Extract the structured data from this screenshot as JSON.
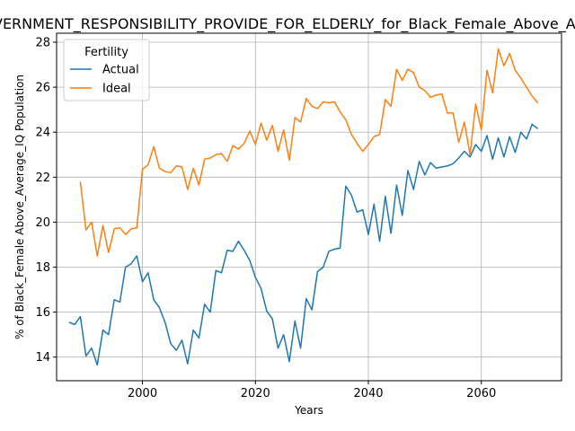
{
  "chart_data": {
    "type": "line",
    "title": "GOVERNMENT_RESPONSIBILITY_PROVIDE_FOR_ELDERLY_for_Black_Female_Above_Average_IQ",
    "xlabel": "Years",
    "ylabel": "% of Black_Female Above_Average_IQ Population",
    "xlim": [
      1984.8,
      2074.2
    ],
    "ylim": [
      12.95,
      28.4
    ],
    "xticks": [
      2000,
      2020,
      2040,
      2060
    ],
    "yticks": [
      14,
      16,
      18,
      20,
      22,
      24,
      26,
      28
    ],
    "grid": true,
    "legend": {
      "title": "Fertility",
      "placement": "top-left"
    },
    "x": [
      1987,
      1988,
      1989,
      1990,
      1991,
      1992,
      1993,
      1994,
      1995,
      1996,
      1997,
      1998,
      1999,
      2000,
      2001,
      2002,
      2003,
      2004,
      2005,
      2006,
      2007,
      2008,
      2009,
      2010,
      2011,
      2012,
      2013,
      2014,
      2015,
      2016,
      2017,
      2018,
      2019,
      2020,
      2021,
      2022,
      2023,
      2024,
      2025,
      2026,
      2027,
      2028,
      2029,
      2030,
      2031,
      2032,
      2033,
      2034,
      2035,
      2036,
      2037,
      2038,
      2039,
      2040,
      2041,
      2042,
      2043,
      2044,
      2045,
      2046,
      2047,
      2048,
      2049,
      2050,
      2051,
      2052,
      2053,
      2054,
      2055,
      2056,
      2057,
      2058,
      2059,
      2060,
      2061,
      2062,
      2063,
      2064,
      2065,
      2066,
      2067,
      2068,
      2069,
      2070
    ],
    "series": [
      {
        "name": "Actual",
        "color": "#1f77b4",
        "values": [
          15.55,
          15.45,
          15.8,
          14.05,
          14.4,
          13.65,
          15.2,
          15.0,
          16.55,
          16.45,
          18.0,
          18.15,
          18.5,
          17.35,
          17.75,
          16.55,
          16.2,
          15.55,
          14.6,
          14.3,
          14.75,
          13.7,
          15.2,
          14.85,
          16.35,
          16.0,
          17.85,
          17.75,
          18.75,
          18.7,
          19.15,
          18.75,
          18.3,
          17.55,
          17.05,
          16.05,
          15.7,
          14.4,
          15.0,
          13.8,
          15.6,
          14.4,
          16.6,
          16.1,
          17.8,
          18.0,
          18.7,
          18.8,
          18.85,
          21.6,
          21.2,
          20.45,
          20.55,
          19.45,
          20.8,
          19.15,
          21.15,
          19.5,
          21.65,
          20.3,
          22.3,
          21.45,
          22.7,
          22.1,
          22.65,
          22.4,
          22.45,
          22.5,
          22.6,
          22.85,
          23.15,
          22.9,
          23.45,
          23.15,
          23.85,
          22.8,
          23.75,
          22.9,
          23.8,
          23.1,
          24.0,
          23.7,
          24.35,
          24.15
        ]
      },
      {
        "name": "Ideal",
        "color": "#ff7f0e",
        "values": [
          null,
          null,
          21.8,
          19.65,
          20.0,
          18.5,
          19.85,
          18.65,
          19.7,
          19.75,
          19.45,
          19.7,
          19.75,
          22.35,
          22.55,
          23.35,
          22.4,
          22.25,
          22.2,
          22.5,
          22.45,
          21.45,
          22.4,
          21.65,
          22.8,
          22.85,
          23.0,
          23.05,
          22.7,
          23.4,
          23.25,
          23.5,
          24.05,
          23.45,
          24.4,
          23.65,
          24.3,
          23.15,
          24.1,
          22.75,
          24.65,
          24.45,
          25.5,
          25.15,
          25.05,
          25.35,
          25.3,
          25.35,
          24.9,
          24.55,
          23.9,
          23.5,
          23.15,
          23.45,
          23.8,
          23.9,
          25.45,
          25.15,
          26.8,
          26.3,
          26.8,
          26.65,
          26.0,
          25.85,
          25.55,
          25.65,
          25.7,
          24.85,
          24.85,
          23.55,
          24.45,
          23.0,
          25.25,
          24.1,
          26.75,
          25.75,
          27.7,
          26.95,
          27.5,
          26.75,
          26.4,
          26.0,
          25.6,
          25.3
        ]
      }
    ]
  }
}
